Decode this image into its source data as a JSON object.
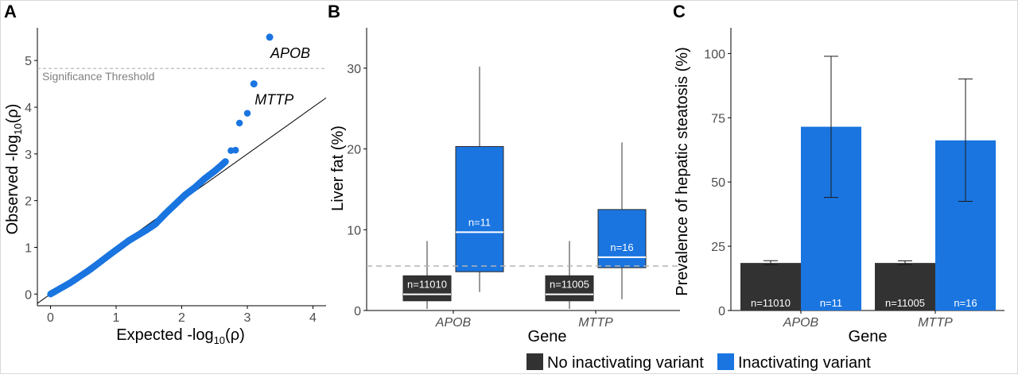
{
  "chart_data": [
    {
      "panel": "A",
      "type": "scatter",
      "xlabel": "Expected -log10(ρ)",
      "ylabel": "Observed -log10(ρ)",
      "xticks": [
        0,
        1,
        2,
        3,
        4
      ],
      "yticks": [
        0,
        1,
        2,
        3,
        4,
        5
      ],
      "xlim": [
        -0.2,
        4.2
      ],
      "ylim": [
        -0.25,
        5.7
      ],
      "threshold": {
        "value": 4.83,
        "label": "Significance Threshold"
      },
      "diagonal": true,
      "color": "#1a75e0",
      "labeled_points": [
        {
          "x": 3.34,
          "y": 5.5,
          "label": "APOB"
        },
        {
          "x": 3.1,
          "y": 4.5,
          "label": "MTTP"
        }
      ],
      "upper_points": [
        {
          "x": 2.75,
          "y": 3.07
        },
        {
          "x": 2.82,
          "y": 3.08
        },
        {
          "x": 2.88,
          "y": 3.66
        },
        {
          "x": 3.0,
          "y": 3.87
        }
      ],
      "bulk": [
        [
          0.0,
          0.0
        ],
        [
          0.3,
          0.24
        ],
        [
          0.6,
          0.52
        ],
        [
          0.9,
          0.84
        ],
        [
          1.2,
          1.15
        ],
        [
          1.45,
          1.36
        ],
        [
          1.6,
          1.5
        ],
        [
          1.75,
          1.72
        ],
        [
          1.9,
          1.92
        ],
        [
          2.05,
          2.12
        ],
        [
          2.2,
          2.28
        ],
        [
          2.35,
          2.47
        ],
        [
          2.5,
          2.63
        ],
        [
          2.6,
          2.75
        ],
        [
          2.67,
          2.84
        ]
      ]
    },
    {
      "panel": "B",
      "type": "box",
      "xlabel": "Gene",
      "ylabel": "Liver fat (%)",
      "categories": [
        "APOB",
        "MTTP"
      ],
      "yticks": [
        0,
        10,
        20,
        30
      ],
      "ylim": [
        0,
        35
      ],
      "reference_line": 5.5,
      "boxes": [
        {
          "gene": "APOB",
          "group": "No inactivating variant",
          "min": 0.2,
          "q1": 1.2,
          "median": 2.0,
          "q3": 4.3,
          "max": 8.6,
          "n_label": "n=11010"
        },
        {
          "gene": "APOB",
          "group": "Inactivating variant",
          "min": 2.3,
          "q1": 4.8,
          "median": 9.7,
          "q3": 20.3,
          "max": 30.2,
          "n_label": "n=11"
        },
        {
          "gene": "MTTP",
          "group": "No inactivating variant",
          "min": 0.2,
          "q1": 1.2,
          "median": 2.0,
          "q3": 4.3,
          "max": 8.6,
          "n_label": "n=11005"
        },
        {
          "gene": "MTTP",
          "group": "Inactivating variant",
          "min": 1.4,
          "q1": 5.3,
          "median": 6.6,
          "q3": 12.5,
          "max": 20.8,
          "n_label": "n=16"
        }
      ]
    },
    {
      "panel": "C",
      "type": "bar",
      "xlabel": "Gene",
      "ylabel": "Prevalence of hepatic steatosis (%)",
      "categories": [
        "APOB",
        "MTTP"
      ],
      "yticks": [
        0,
        25,
        50,
        75,
        100
      ],
      "ylim": [
        0,
        110
      ],
      "series": [
        {
          "name": "No inactivating variant",
          "values": [
            18.5,
            18.5
          ],
          "err_low": [
            17.8,
            17.8
          ],
          "err_high": [
            19.4,
            19.3
          ],
          "n_labels": [
            "n=11010",
            "n=11005"
          ]
        },
        {
          "name": "Inactivating variant",
          "values": [
            71.5,
            66.2
          ],
          "err_low": [
            44.0,
            42.5
          ],
          "err_high": [
            98.9,
            90.1
          ],
          "n_labels": [
            "n=11",
            "n=16"
          ]
        }
      ]
    }
  ],
  "panel_labels": [
    "A",
    "B",
    "C"
  ],
  "legend": {
    "items": [
      {
        "label": "No inactivating variant",
        "color": "#323232"
      },
      {
        "label": "Inactivating variant",
        "color": "#1a75e0"
      }
    ]
  },
  "colors": {
    "dark": "#323232",
    "blue": "#1a75e0",
    "axis": "#000000",
    "grid_ref": "#b4b4b4",
    "tick_text": "#4d4d4d"
  }
}
